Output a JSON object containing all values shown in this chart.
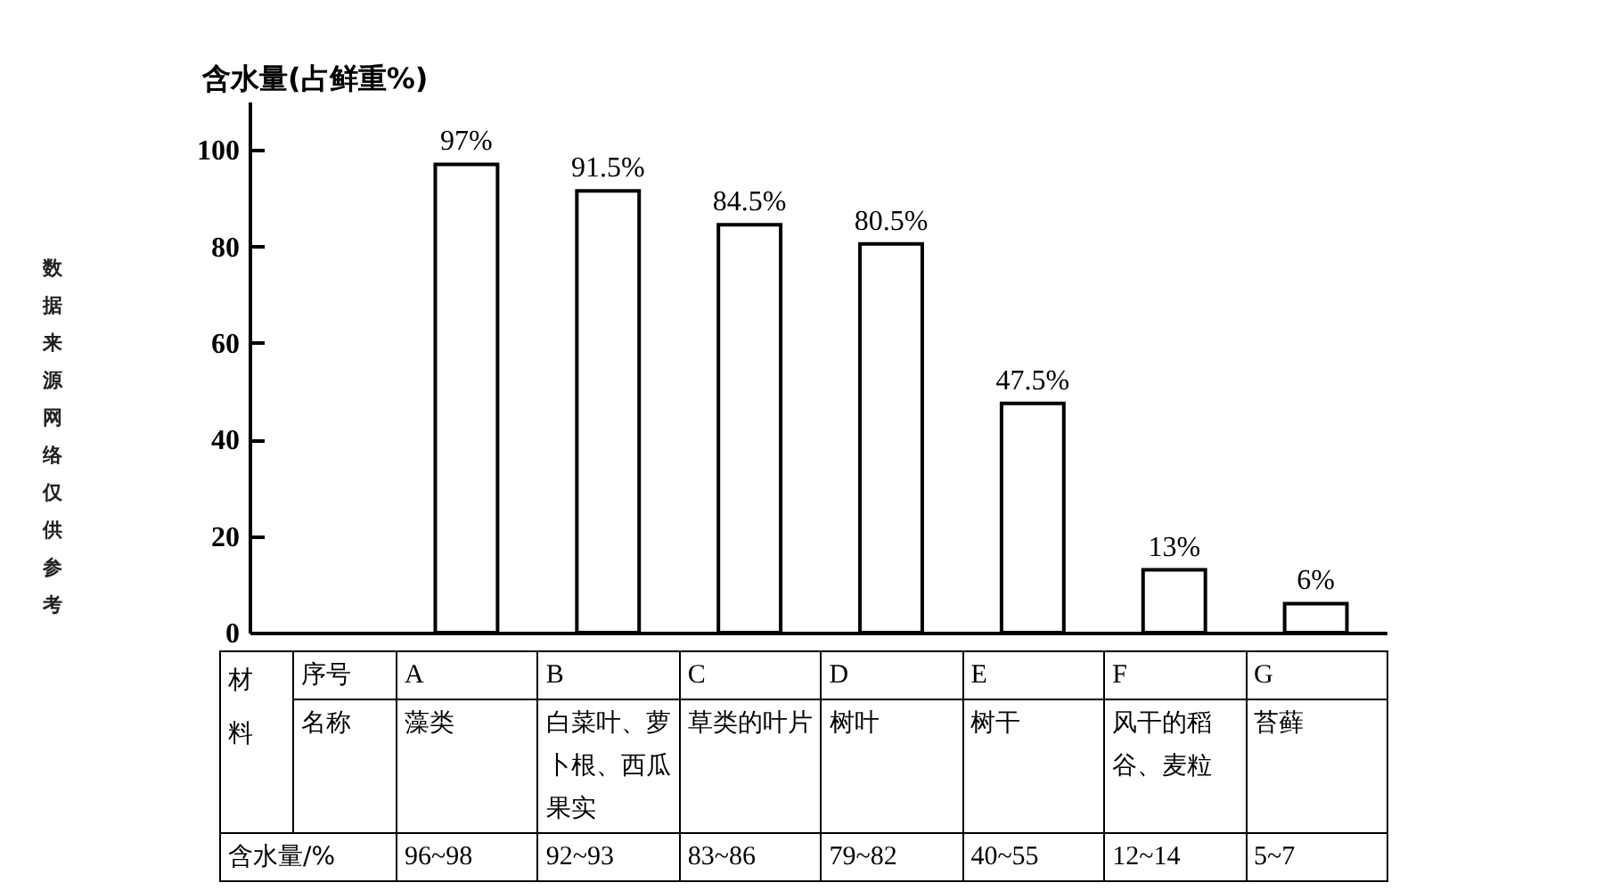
{
  "chart_data": {
    "type": "bar",
    "ylabel": "含水量(占鲜重%)",
    "categories": [
      "A",
      "B",
      "C",
      "D",
      "E",
      "F",
      "G"
    ],
    "values": [
      97,
      91.5,
      84.5,
      80.5,
      47.5,
      13,
      6
    ],
    "value_labels": [
      "97%",
      "91.5%",
      "84.5%",
      "80.5%",
      "47.5%",
      "13%",
      "6%"
    ],
    "color": "#ffffff",
    "ylim": [
      0,
      110
    ],
    "yticks": [
      0,
      20,
      40,
      60,
      80,
      100
    ],
    "annotations": [
      "数据来源网络仅供参考",
      "材料",
      "序号",
      "名称",
      "含水量/%",
      "藻类",
      "白菜叶、萝卜根、西瓜果实",
      "草类的叶片",
      "树叶",
      "树干",
      "风干的稻谷、麦粒",
      "苔藓",
      "96~98",
      "92~93",
      "83~86",
      "79~82",
      "40~55",
      "12~14",
      "5~7"
    ]
  }
}
